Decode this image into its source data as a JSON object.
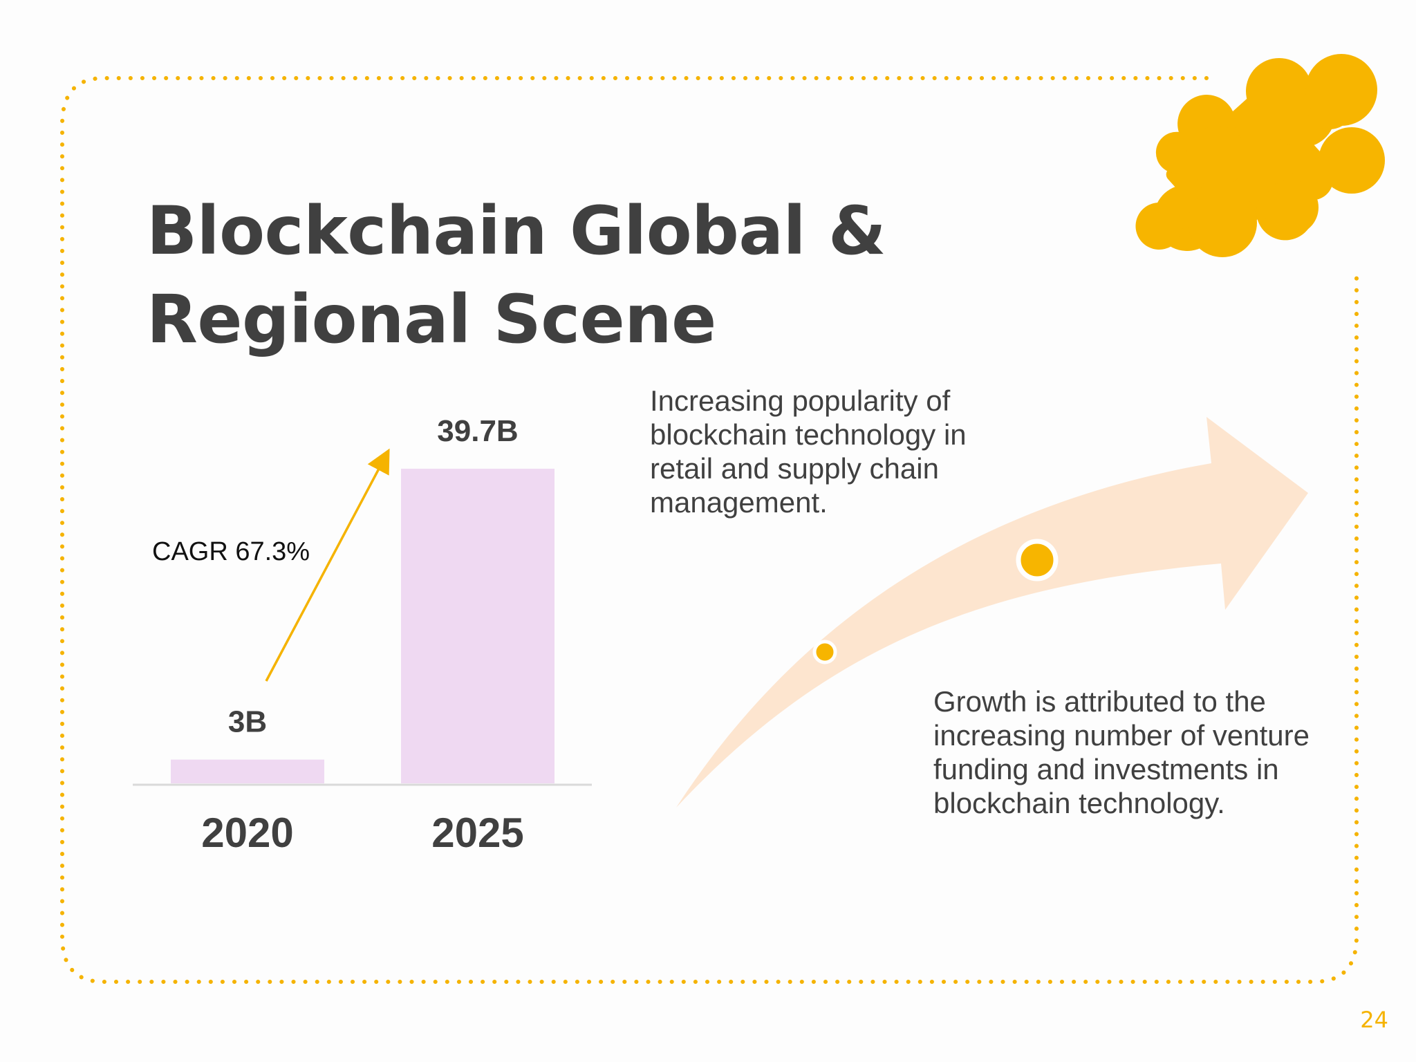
{
  "slide": {
    "title": "Blockchain Global & Regional Scene",
    "text_top": "Increasing popularity of blockchain technology in retail and supply chain management.",
    "text_bottom": "Growth is attributed to the increasing number of venture funding and investments in blockchain technology.",
    "page_number": "24"
  },
  "colors": {
    "accent": "#f5b301",
    "bar": "#efd9f2",
    "text": "#404040",
    "arrow": "#fde5cf"
  },
  "chart_data": {
    "type": "bar",
    "categories": [
      "2020",
      "2025"
    ],
    "values": [
      3,
      39.7
    ],
    "value_labels": [
      "3B",
      "39.7B"
    ],
    "annotation": "CAGR 67.3%",
    "title": "",
    "xlabel": "",
    "ylabel": "",
    "ylim": [
      0,
      41
    ],
    "grid": false
  },
  "icons": {
    "decoration": "puzzle-piece-icon",
    "growth": "growth-arrow-icon"
  }
}
